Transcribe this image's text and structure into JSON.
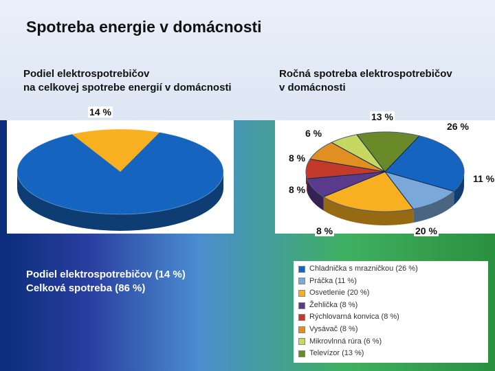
{
  "title": "Spotreba energie v domácnosti",
  "subtitle_left_line1": "Podiel elektrospotrebičov",
  "subtitle_left_line2": "na celkovej spotrebe energií v domácnosti",
  "subtitle_right_line1": "Ročná spotreba elektrospotrebičov",
  "subtitle_right_line2": "v domácnosti",
  "caption_left_line1": "Podiel elektrospotrebičov (14 %)",
  "caption_left_line2": " Celková spotreba (86 %)",
  "chart_left": {
    "type": "pie",
    "slices": [
      {
        "label": "14 %",
        "value": 14,
        "color": "#f8b020"
      },
      {
        "label": "86 %",
        "value": 86,
        "color": "#1565c0"
      }
    ],
    "depth_color": "#0b3f84",
    "depth_color_2": "#c78a10",
    "background_color": "#ffffff",
    "label_fontsize": 14,
    "label_fontweight": "bold"
  },
  "chart_right": {
    "type": "pie",
    "slices": [
      {
        "name": "Chladnička s mrazničkou",
        "label": "26 %",
        "value": 26,
        "color": "#1565c0"
      },
      {
        "name": "Práčka",
        "label": "11 %",
        "value": 11,
        "color": "#7aa8d8"
      },
      {
        "name": "Osvetlenie",
        "label": "20 %",
        "value": 20,
        "color": "#f8b020"
      },
      {
        "name": "Žehlička",
        "label": "8 %",
        "value": 8,
        "color": "#5a3a8a"
      },
      {
        "name": "Rýchlovarná konvica",
        "label": "8 %",
        "value": 8,
        "color": "#c43a2a"
      },
      {
        "name": "Vysávač",
        "label": "8 %",
        "value": 8,
        "color": "#e08f20"
      },
      {
        "name": "Mikrovlnná rúra",
        "label": "6 %",
        "value": 6,
        "color": "#c6d860"
      },
      {
        "name": "Televízor",
        "label": "13 %",
        "value": 13,
        "color": "#6a8a2a"
      }
    ],
    "depth_color": "#0b3f84",
    "background_color": "#ffffff",
    "label_fontsize": 14
  },
  "legend": {
    "items": [
      {
        "color": "#1565c0",
        "text": "Chladnička s mrazničkou (26 %)"
      },
      {
        "color": "#7aa8d8",
        "text": "Práčka (11 %)"
      },
      {
        "color": "#f8b020",
        "text": "Osvetlenie (20 %)"
      },
      {
        "color": "#5a3a8a",
        "text": "Žehlička (8 %)"
      },
      {
        "color": "#c43a2a",
        "text": "Rýchlovarná konvica (8 %)"
      },
      {
        "color": "#e08f20",
        "text": "Vysávač (8 %)"
      },
      {
        "color": "#c6d860",
        "text": "Mikrovlnná rúra (6 %)"
      },
      {
        "color": "#6a8a2a",
        "text": "Televízor (13 %)"
      }
    ]
  }
}
